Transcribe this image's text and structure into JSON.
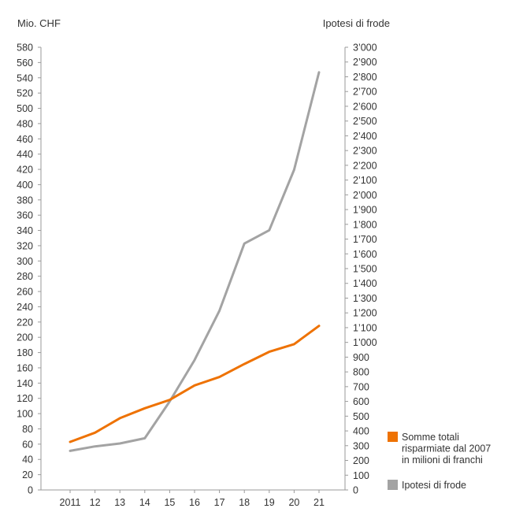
{
  "chart_data": {
    "type": "line",
    "left_axis_label": "Mio. CHF",
    "right_axis_label": "Ipotesi di frode",
    "categories": [
      "2011",
      "12",
      "13",
      "14",
      "15",
      "16",
      "17",
      "18",
      "19",
      "20",
      "21"
    ],
    "left_ticks": [
      "0",
      "20",
      "40",
      "60",
      "80",
      "100",
      "120",
      "140",
      "160",
      "180",
      "200",
      "220",
      "240",
      "260",
      "280",
      "300",
      "320",
      "340",
      "360",
      "380",
      "400",
      "420",
      "440",
      "460",
      "480",
      "500",
      "520",
      "540",
      "560",
      "580"
    ],
    "right_ticks": [
      "0",
      "100",
      "200",
      "300",
      "400",
      "500",
      "600",
      "700",
      "800",
      "900",
      "1’000",
      "1’100",
      "1’200",
      "1’300",
      "1’400",
      "1’500",
      "1’600",
      "1’700",
      "1’800",
      "1’900",
      "2’000",
      "2’100",
      "2’200",
      "2’300",
      "2’400",
      "2’500",
      "2’600",
      "2’700",
      "2’800",
      "2’900",
      "3’000"
    ],
    "ylim_left": [
      0,
      580
    ],
    "ylim_right": [
      0,
      3000
    ],
    "series": [
      {
        "name": "Somme totali risparmiate dal 2007 in milioni di franchi",
        "axis": "left",
        "color": "#ee7203",
        "values": [
          63,
          75,
          94,
          107,
          118,
          137,
          148,
          165,
          181,
          191,
          215
        ]
      },
      {
        "name": "Ipotesi di frode",
        "axis": "right",
        "color": "#a3a3a3",
        "values": [
          265,
          295,
          315,
          350,
          600,
          880,
          1215,
          1670,
          1760,
          2170,
          2830
        ]
      }
    ],
    "legend": {
      "position": "right-bottom",
      "items": [
        {
          "lines": [
            "Somme totali",
            "risparmiate dal 2007",
            "in milioni di franchi"
          ],
          "color": "#ee7203"
        },
        {
          "lines": [
            "Ipotesi di frode"
          ],
          "color": "#a3a3a3"
        }
      ]
    },
    "grid": false
  }
}
